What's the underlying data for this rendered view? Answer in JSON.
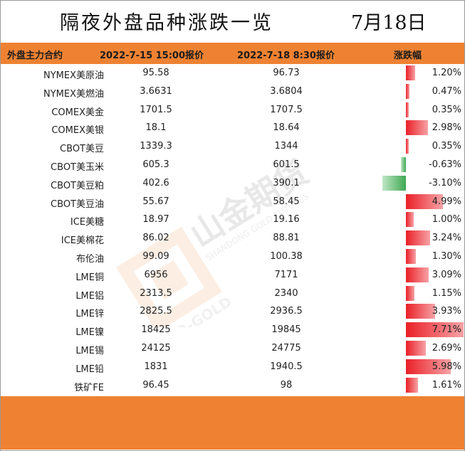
{
  "title": "隔夜外盘品种涨跌一览",
  "date": "7月18日",
  "headers": {
    "contract": "外盘主力合约",
    "price1": "2022-7-15 15:00报价",
    "price2": "2022-7-18 8:30报价",
    "change": "涨跌幅"
  },
  "colors": {
    "accent": "#ee8232",
    "up": "#ea1f27",
    "down": "#3ea852"
  },
  "watermark": {
    "brand_lines": [
      "山金期货",
      "SHANDONG GOLD FUTURES",
      "SD-GOLD"
    ]
  },
  "rows": [
    {
      "name": "NYMEX美原油",
      "p1": "95.58",
      "p2": "96.73",
      "chg": "1.20%",
      "pct": 1.2
    },
    {
      "name": "NYMEX美燃油",
      "p1": "3.6631",
      "p2": "3.6804",
      "chg": "0.47%",
      "pct": 0.47
    },
    {
      "name": "COMEX美金",
      "p1": "1701.5",
      "p2": "1707.5",
      "chg": "0.35%",
      "pct": 0.35
    },
    {
      "name": "COMEX美银",
      "p1": "18.1",
      "p2": "18.64",
      "chg": "2.98%",
      "pct": 2.98
    },
    {
      "name": "CBOT美豆",
      "p1": "1339.3",
      "p2": "1344",
      "chg": "0.35%",
      "pct": 0.35
    },
    {
      "name": "CBOT美玉米",
      "p1": "605.3",
      "p2": "601.5",
      "chg": "-0.63%",
      "pct": -0.63
    },
    {
      "name": "CBOT美豆粕",
      "p1": "402.6",
      "p2": "390.1",
      "chg": "-3.10%",
      "pct": -3.1
    },
    {
      "name": "CBOT美豆油",
      "p1": "55.67",
      "p2": "58.45",
      "chg": "4.99%",
      "pct": 4.99
    },
    {
      "name": "ICE美糖",
      "p1": "18.97",
      "p2": "19.16",
      "chg": "1.00%",
      "pct": 1.0
    },
    {
      "name": "ICE美棉花",
      "p1": "86.02",
      "p2": "88.81",
      "chg": "3.24%",
      "pct": 3.24
    },
    {
      "name": "布伦油",
      "p1": "99.09",
      "p2": "100.38",
      "chg": "1.30%",
      "pct": 1.3
    },
    {
      "name": "LME铜",
      "p1": "6956",
      "p2": "7171",
      "chg": "3.09%",
      "pct": 3.09
    },
    {
      "name": "LME铝",
      "p1": "2313.5",
      "p2": "2340",
      "chg": "1.15%",
      "pct": 1.15
    },
    {
      "name": "LME锌",
      "p1": "2825.5",
      "p2": "2936.5",
      "chg": "3.93%",
      "pct": 3.93
    },
    {
      "name": "LME镍",
      "p1": "18425",
      "p2": "19845",
      "chg": "7.71%",
      "pct": 7.71
    },
    {
      "name": "LME锡",
      "p1": "24125",
      "p2": "24775",
      "chg": "2.69%",
      "pct": 2.69
    },
    {
      "name": "LME铅",
      "p1": "1831",
      "p2": "1940.5",
      "chg": "5.98%",
      "pct": 5.98
    },
    {
      "name": "铁矿FE",
      "p1": "96.45",
      "p2": "98",
      "chg": "1.61%",
      "pct": 1.61
    }
  ]
}
